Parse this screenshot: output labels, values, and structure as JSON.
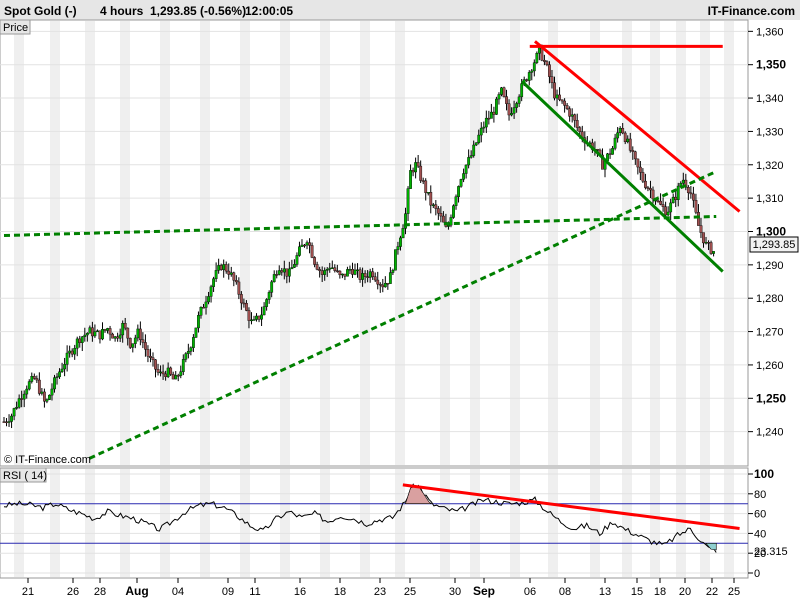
{
  "header": {
    "instrument": "Spot Gold (-)",
    "timeframe": "4 hours",
    "quote": "1,293.85 (-0.56%)",
    "time": "12:00:05",
    "brand": "IT-Finance.com"
  },
  "chart_data": [
    {
      "type": "candlestick",
      "panel_label": "Price",
      "watermark": "© IT-Finance.com",
      "x_ticks": [
        "21",
        "26",
        "28",
        "Aug",
        "04",
        "09",
        "11",
        "16",
        "18",
        "23",
        "25",
        "30",
        "Sep",
        "06",
        "08",
        "13",
        "15",
        "18",
        "20",
        "22",
        "25"
      ],
      "bold_x_ticks": [
        "Aug",
        "Sep"
      ],
      "y_ticks": [
        1240,
        1250,
        1260,
        1270,
        1280,
        1290,
        1300,
        1310,
        1320,
        1330,
        1340,
        1350,
        1360
      ],
      "y_tick_labels": [
        "1,240",
        "1,250",
        "1,260",
        "1,270",
        "1,280",
        "1,290",
        "1,300",
        "1,310",
        "1,320",
        "1,330",
        "1,340",
        "1,350",
        "1,360"
      ],
      "ylim": [
        1233,
        1361
      ],
      "last_price_label": "1,293.85",
      "last_price": 1293.85,
      "close_path": [
        [
          0,
          1243
        ],
        [
          0.06,
          1245
        ],
        [
          0.12,
          1250
        ],
        [
          0.18,
          1254
        ],
        [
          0.24,
          1256
        ],
        [
          0.28,
          1252
        ],
        [
          0.32,
          1248
        ],
        [
          0.38,
          1254
        ],
        [
          0.44,
          1259
        ],
        [
          0.5,
          1263
        ],
        [
          0.58,
          1268
        ],
        [
          0.66,
          1270
        ],
        [
          0.74,
          1269
        ],
        [
          0.8,
          1271
        ],
        [
          0.86,
          1268
        ],
        [
          0.92,
          1272
        ],
        [
          0.98,
          1266
        ],
        [
          1.04,
          1270
        ],
        [
          1.12,
          1262
        ],
        [
          1.2,
          1257
        ],
        [
          1.26,
          1258
        ],
        [
          1.32,
          1255
        ],
        [
          1.38,
          1260
        ],
        [
          1.44,
          1266
        ],
        [
          1.5,
          1274
        ],
        [
          1.56,
          1280
        ],
        [
          1.62,
          1286
        ],
        [
          1.68,
          1290
        ],
        [
          1.74,
          1288
        ],
        [
          1.8,
          1283
        ],
        [
          1.86,
          1277
        ],
        [
          1.92,
          1272
        ],
        [
          2.0,
          1276
        ],
        [
          2.06,
          1284
        ],
        [
          2.12,
          1290
        ],
        [
          2.2,
          1287
        ],
        [
          2.28,
          1294
        ],
        [
          2.34,
          1298
        ],
        [
          2.4,
          1291
        ],
        [
          2.46,
          1287
        ],
        [
          2.52,
          1290
        ],
        [
          2.6,
          1286
        ],
        [
          2.68,
          1289
        ],
        [
          2.76,
          1286
        ],
        [
          2.84,
          1288
        ],
        [
          2.92,
          1284
        ],
        [
          2.98,
          1286
        ],
        [
          3.04,
          1296
        ],
        [
          3.1,
          1305
        ],
        [
          3.14,
          1318
        ],
        [
          3.18,
          1320
        ],
        [
          3.24,
          1314
        ],
        [
          3.3,
          1308
        ],
        [
          3.36,
          1305
        ],
        [
          3.42,
          1300
        ],
        [
          3.48,
          1310
        ],
        [
          3.54,
          1318
        ],
        [
          3.6,
          1322
        ],
        [
          3.66,
          1328
        ],
        [
          3.72,
          1333
        ],
        [
          3.78,
          1336
        ],
        [
          3.84,
          1342
        ],
        [
          3.9,
          1335
        ],
        [
          3.96,
          1340
        ],
        [
          4.02,
          1345
        ],
        [
          4.08,
          1350
        ],
        [
          4.14,
          1354
        ],
        [
          4.2,
          1348
        ],
        [
          4.26,
          1340
        ],
        [
          4.32,
          1338
        ],
        [
          4.38,
          1335
        ],
        [
          4.44,
          1330
        ],
        [
          4.5,
          1327
        ],
        [
          4.56,
          1325
        ],
        [
          4.62,
          1320
        ],
        [
          4.7,
          1325
        ],
        [
          4.76,
          1332
        ],
        [
          4.82,
          1326
        ],
        [
          4.88,
          1320
        ],
        [
          4.94,
          1315
        ],
        [
          5.0,
          1312
        ],
        [
          5.06,
          1308
        ],
        [
          5.12,
          1306
        ],
        [
          5.18,
          1310
        ],
        [
          5.24,
          1316
        ],
        [
          5.3,
          1312
        ],
        [
          5.36,
          1302
        ],
        [
          5.42,
          1296
        ],
        [
          5.48,
          1294
        ]
      ],
      "trendlines": [
        {
          "color": "#ff0000",
          "style": "solid",
          "points": [
            [
              4.06,
              1355.5
            ],
            [
              5.55,
              1355.5
            ]
          ]
        },
        {
          "color": "#ff0000",
          "style": "solid",
          "points": [
            [
              4.1,
              1357
            ],
            [
              5.68,
              1306
            ]
          ]
        },
        {
          "color": "#008000",
          "style": "solid",
          "points": [
            [
              4.0,
              1345
            ],
            [
              5.55,
              1288
            ]
          ]
        },
        {
          "color": "#008000",
          "style": "dashed",
          "points": [
            [
              0,
              1298.8
            ],
            [
              5.5,
              1304.5
            ]
          ]
        },
        {
          "color": "#008000",
          "style": "dashed",
          "points": [
            [
              0.66,
              1232
            ],
            [
              5.5,
              1318
            ]
          ]
        }
      ]
    },
    {
      "type": "line",
      "name": "RSI ( 14)",
      "y_ticks": [
        0,
        20,
        40,
        60,
        80,
        100
      ],
      "ylim": [
        0,
        100
      ],
      "levels": [
        70,
        30
      ],
      "last_value": 23.315,
      "last_value_label": "23.315",
      "values_path": [
        [
          0,
          68
        ],
        [
          0.1,
          70
        ],
        [
          0.2,
          69
        ],
        [
          0.3,
          66
        ],
        [
          0.4,
          70
        ],
        [
          0.5,
          64
        ],
        [
          0.6,
          60
        ],
        [
          0.7,
          55
        ],
        [
          0.8,
          62
        ],
        [
          0.9,
          58
        ],
        [
          1.0,
          55
        ],
        [
          1.1,
          50
        ],
        [
          1.2,
          44
        ],
        [
          1.3,
          52
        ],
        [
          1.4,
          62
        ],
        [
          1.5,
          68
        ],
        [
          1.6,
          70
        ],
        [
          1.7,
          66
        ],
        [
          1.8,
          58
        ],
        [
          1.9,
          48
        ],
        [
          2.0,
          42
        ],
        [
          2.1,
          55
        ],
        [
          2.2,
          62
        ],
        [
          2.3,
          56
        ],
        [
          2.4,
          60
        ],
        [
          2.5,
          52
        ],
        [
          2.6,
          58
        ],
        [
          2.7,
          55
        ],
        [
          2.8,
          50
        ],
        [
          2.9,
          54
        ],
        [
          3.0,
          56
        ],
        [
          3.1,
          72
        ],
        [
          3.14,
          86
        ],
        [
          3.2,
          88
        ],
        [
          3.3,
          70
        ],
        [
          3.4,
          65
        ],
        [
          3.5,
          62
        ],
        [
          3.6,
          68
        ],
        [
          3.7,
          74
        ],
        [
          3.8,
          72
        ],
        [
          3.9,
          70
        ],
        [
          4.0,
          71
        ],
        [
          4.1,
          74
        ],
        [
          4.2,
          62
        ],
        [
          4.3,
          52
        ],
        [
          4.4,
          45
        ],
        [
          4.5,
          48
        ],
        [
          4.6,
          40
        ],
        [
          4.7,
          52
        ],
        [
          4.8,
          44
        ],
        [
          4.9,
          38
        ],
        [
          5.0,
          32
        ],
        [
          5.1,
          28
        ],
        [
          5.2,
          38
        ],
        [
          5.3,
          45
        ],
        [
          5.38,
          33
        ],
        [
          5.44,
          25
        ],
        [
          5.5,
          23.3
        ]
      ],
      "trendlines": [
        {
          "color": "#ff0000",
          "style": "solid",
          "points": [
            [
              3.08,
              89
            ],
            [
              5.68,
              45
            ]
          ]
        }
      ]
    }
  ]
}
